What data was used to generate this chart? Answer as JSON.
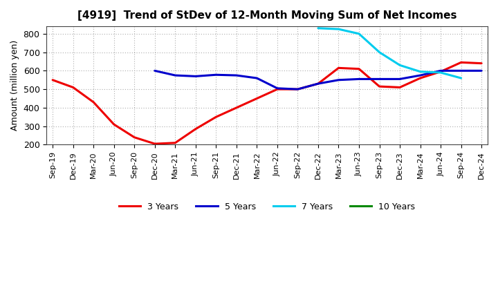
{
  "title": "[4919]  Trend of StDev of 12-Month Moving Sum of Net Incomes",
  "ylabel": "Amount (million yen)",
  "background_color": "#ffffff",
  "grid_color": "#aaaaaa",
  "ylim": [
    200,
    840
  ],
  "yticks": [
    200,
    300,
    400,
    500,
    600,
    700,
    800
  ],
  "x_labels": [
    "Sep-19",
    "Dec-19",
    "Mar-20",
    "Jun-20",
    "Sep-20",
    "Dec-20",
    "Mar-21",
    "Jun-21",
    "Sep-21",
    "Dec-21",
    "Mar-22",
    "Jun-22",
    "Sep-22",
    "Dec-22",
    "Mar-23",
    "Jun-23",
    "Sep-23",
    "Dec-23",
    "Mar-24",
    "Jun-24",
    "Sep-24",
    "Dec-24"
  ],
  "series": {
    "3 Years": {
      "color": "#ee0000",
      "values": [
        550,
        510,
        430,
        310,
        240,
        205,
        210,
        285,
        350,
        400,
        450,
        500,
        500,
        530,
        615,
        610,
        515,
        510,
        560,
        595,
        645,
        640
      ]
    },
    "5 Years": {
      "color": "#0000cc",
      "values": [
        null,
        null,
        null,
        null,
        null,
        600,
        575,
        570,
        578,
        575,
        560,
        505,
        500,
        530,
        550,
        555,
        555,
        555,
        575,
        600,
        600,
        600
      ]
    },
    "7 Years": {
      "color": "#00ccee",
      "values": [
        null,
        null,
        null,
        null,
        null,
        null,
        null,
        null,
        null,
        null,
        null,
        null,
        null,
        830,
        825,
        800,
        700,
        630,
        595,
        590,
        560,
        null
      ]
    },
    "10 Years": {
      "color": "#008800",
      "values": [
        null,
        null,
        null,
        null,
        null,
        null,
        null,
        null,
        null,
        null,
        null,
        null,
        null,
        null,
        null,
        null,
        null,
        null,
        null,
        null,
        null,
        null
      ]
    }
  }
}
